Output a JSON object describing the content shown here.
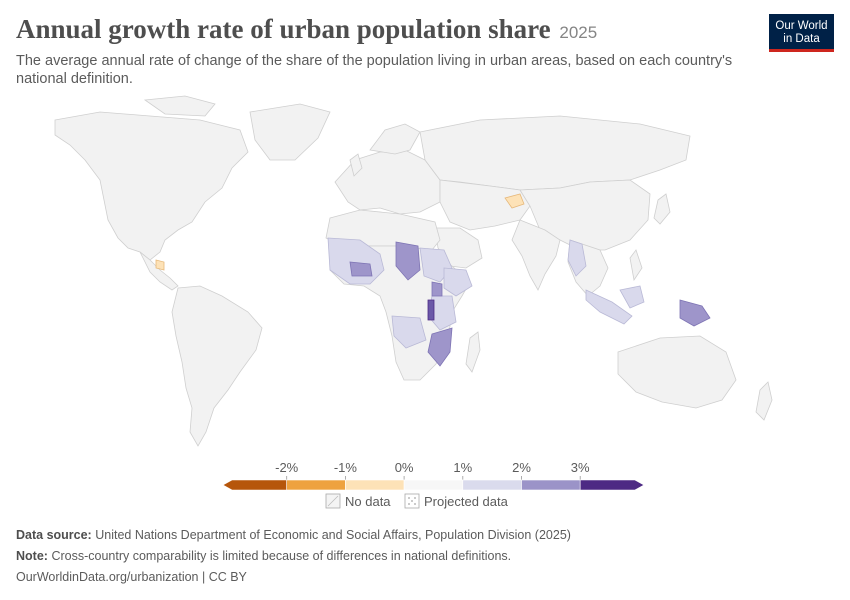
{
  "header": {
    "title": "Annual growth rate of urban population share",
    "year": "2025",
    "subtitle": "The average annual rate of change of the share of the population living in urban areas, based on each country's national definition."
  },
  "logo": {
    "line1": "Our World",
    "line2": "in Data"
  },
  "legend": {
    "ticks": [
      "-2%",
      "-1%",
      "0%",
      "1%",
      "2%",
      "3%"
    ],
    "bins": [
      "#b6560b",
      "#eea23f",
      "#fde2b7",
      "#f7f7f7",
      "#dadbed",
      "#9b93c8",
      "#4d2a84"
    ],
    "no_data_label": "No data",
    "projected_label": "Projected data"
  },
  "map_colors": {
    "land": "#f2f2f2",
    "border": "#cfcfcf",
    "light_purple": "#d9d9ec",
    "mid_purple": "#9e95ca",
    "dark_purple": "#6b58a8",
    "light_orange": "#fde2b7"
  },
  "footer": {
    "source_label": "Data source:",
    "source_text": "United Nations Department of Economic and Social Affairs, Population Division (2025)",
    "note_label": "Note:",
    "note_text": "Cross-country comparability is limited because of differences in national definitions.",
    "credit": "OurWorldinData.org/urbanization | CC BY"
  }
}
